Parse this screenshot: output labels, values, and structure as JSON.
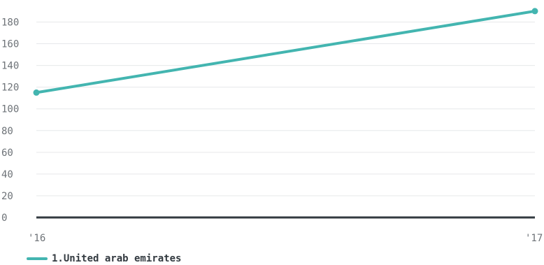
{
  "chart_data": {
    "type": "line",
    "x": [
      "'16",
      "'17"
    ],
    "series": [
      {
        "name": "1.United arab emirates",
        "values": [
          115,
          190
        ],
        "color": "#43b5b0"
      }
    ],
    "yticks": [
      0,
      20,
      40,
      60,
      80,
      100,
      120,
      140,
      160,
      180
    ],
    "ylim": [
      0,
      200
    ],
    "grid": true,
    "legend": "bottom-left",
    "baseline_color": "#333a40"
  }
}
